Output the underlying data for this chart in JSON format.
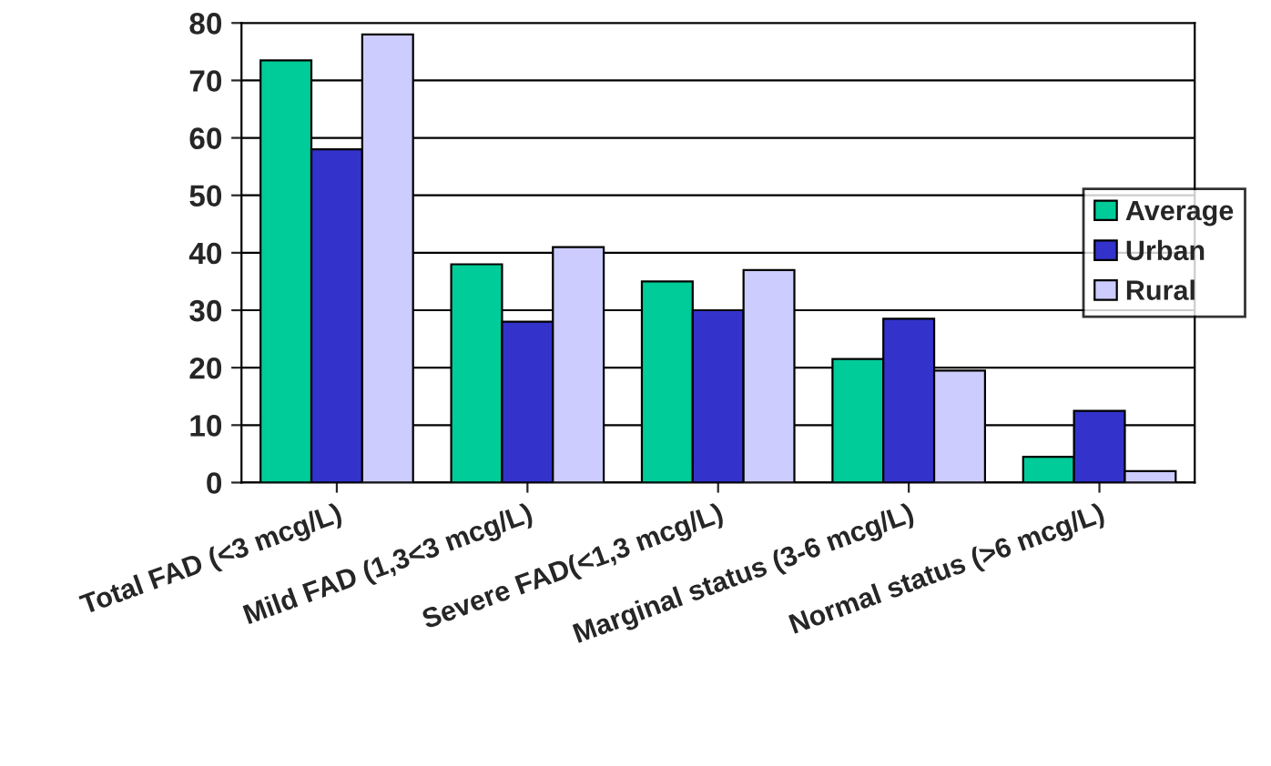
{
  "chart_data": {
    "type": "bar",
    "categories": [
      "Total FAD (<3 mcg/L)",
      "Mild FAD (1,3<3 mcg/L)",
      "Severe FAD(<1,3 mcg/L)",
      "Marginal status (3-6 mcg/L)",
      "Normal status (>6 mcg/L)"
    ],
    "series": [
      {
        "name": "Average",
        "color": "#00cc99",
        "values": [
          73.5,
          38,
          35,
          21.5,
          4.5
        ]
      },
      {
        "name": "Urban",
        "color": "#3333cc",
        "values": [
          58,
          28,
          30,
          28.5,
          12.5
        ]
      },
      {
        "name": "Rural",
        "color": "#ccccff",
        "values": [
          78,
          41,
          37,
          19.5,
          2
        ]
      }
    ],
    "ylim": [
      0,
      80
    ],
    "yticks": [
      0,
      10,
      20,
      30,
      40,
      50,
      60,
      70,
      80
    ],
    "grid": "y",
    "legend": "right"
  }
}
